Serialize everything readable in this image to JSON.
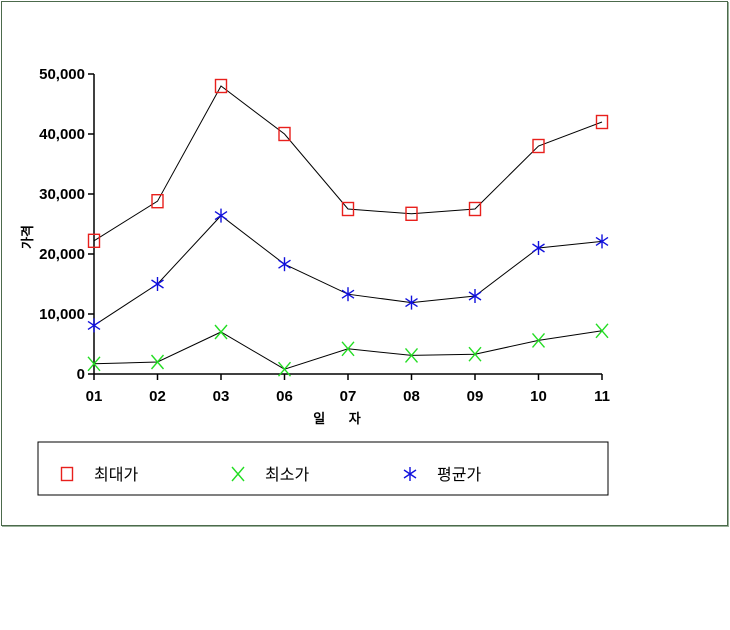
{
  "chart_data": {
    "type": "line",
    "categories": [
      "01",
      "02",
      "03",
      "06",
      "07",
      "08",
      "09",
      "10",
      "11"
    ],
    "xlabel": "일 자",
    "ylabel": "가격",
    "ylim": [
      0,
      50000
    ],
    "yticks": [
      "0",
      "10,000",
      "20,000",
      "30,000",
      "40,000",
      "50,000"
    ],
    "ytick_values": [
      0,
      10000,
      20000,
      30000,
      40000,
      50000
    ],
    "grid": false,
    "legend_position": "bottom",
    "series": [
      {
        "name": "최대가",
        "marker": "square",
        "color": "#e8201c",
        "values": [
          22200,
          28800,
          48000,
          40000,
          27500,
          26700,
          27500,
          38000,
          42000
        ]
      },
      {
        "name": "최소가",
        "marker": "x",
        "color": "#22dd22",
        "values": [
          1700,
          2000,
          7000,
          800,
          4200,
          3100,
          3300,
          5600,
          7200
        ]
      },
      {
        "name": "평균가",
        "marker": "star",
        "color": "#1010dd",
        "values": [
          8100,
          15000,
          26400,
          18300,
          13300,
          11900,
          13000,
          21000,
          22100
        ]
      }
    ]
  }
}
